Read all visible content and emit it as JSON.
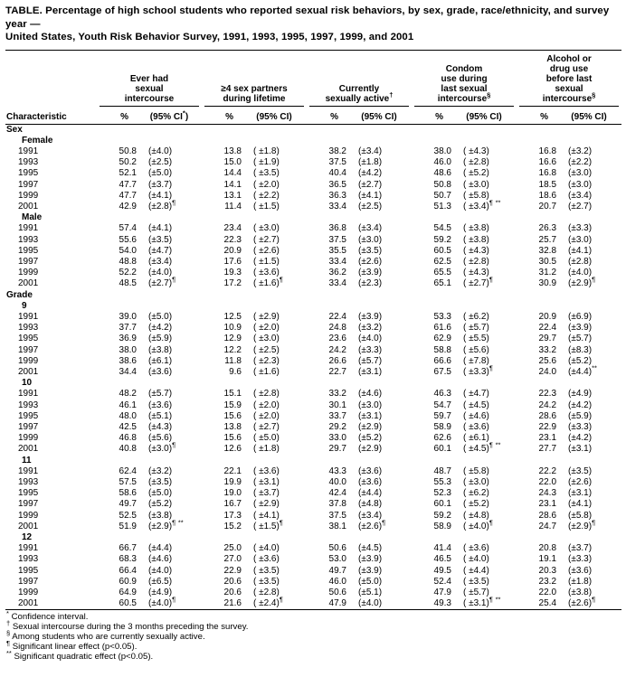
{
  "title": {
    "line1": "TABLE.  Percentage of high school students who reported sexual risk behaviors, by sex, grade, race/ethnicity, and survey year —",
    "line2": "United States, Youth Risk Behavior Survey, 1991, 1993, 1995, 1997, 1999,  and 2001"
  },
  "table": {
    "characteristic_label": "Characteristic",
    "groups": [
      {
        "lines": [
          "Ever had",
          "sexual",
          "intercourse"
        ],
        "sup": "",
        "pct_label": "%",
        "ci_label": "(95% CI*)"
      },
      {
        "lines": [
          "≥4 sex partners",
          "during lifetime"
        ],
        "sup": "",
        "pct_label": "%",
        "ci_label": "(95% CI)"
      },
      {
        "lines": [
          "Currently",
          "sexually active"
        ],
        "sup": "†",
        "pct_label": "%",
        "ci_label": "(95% CI)"
      },
      {
        "lines": [
          "Condom",
          "use during",
          "last sexual",
          "intercourse"
        ],
        "sup": "§",
        "pct_label": "%",
        "ci_label": "(95% CI)"
      },
      {
        "lines": [
          "Alcohol or",
          "drug use",
          "before last",
          "sexual",
          "intercourse"
        ],
        "sup": "§",
        "pct_label": "%",
        "ci_label": "(95% CI)"
      }
    ],
    "sections": [
      {
        "label": "Sex",
        "subsections": [
          {
            "label": "Female",
            "rows": [
              {
                "year": "1991",
                "cells": [
                  "50.8",
                  "(±4.0)",
                  "13.8",
                  "( ±1.8)",
                  "38.2",
                  "(±3.4)",
                  "38.0",
                  "( ±4.3)",
                  "16.8",
                  "(±3.2)"
                ]
              },
              {
                "year": "1993",
                "cells": [
                  "50.2",
                  "(±2.5)",
                  "15.0",
                  "( ±1.9)",
                  "37.5",
                  "(±1.8)",
                  "46.0",
                  "( ±2.8)",
                  "16.6",
                  "(±2.2)"
                ]
              },
              {
                "year": "1995",
                "cells": [
                  "52.1",
                  "(±5.0)",
                  "14.4",
                  "( ±3.5)",
                  "40.4",
                  "(±4.2)",
                  "48.6",
                  "( ±5.2)",
                  "16.8",
                  "(±3.0)"
                ]
              },
              {
                "year": "1997",
                "cells": [
                  "47.7",
                  "(±3.7)",
                  "14.1",
                  "( ±2.0)",
                  "36.5",
                  "(±2.7)",
                  "50.8",
                  "( ±3.0)",
                  "18.5",
                  "(±3.0)"
                ]
              },
              {
                "year": "1999",
                "cells": [
                  "47.7",
                  "(±4.1)",
                  "13.1",
                  "( ±2.2)",
                  "36.3",
                  "(±4.1)",
                  "50.7",
                  "( ±5.8)",
                  "18.6",
                  "(±3.4)"
                ]
              },
              {
                "year": "2001",
                "cells": [
                  "42.9",
                  "(±2.8)¶",
                  "11.4",
                  "( ±1.5)",
                  "33.4",
                  "(±2.5)",
                  "51.3",
                  "( ±3.4)¶ **",
                  "20.7",
                  "(±2.7)"
                ]
              }
            ]
          },
          {
            "label": "Male",
            "rows": [
              {
                "year": "1991",
                "cells": [
                  "57.4",
                  "(±4.1)",
                  "23.4",
                  "( ±3.0)",
                  "36.8",
                  "(±3.4)",
                  "54.5",
                  "( ±3.8)",
                  "26.3",
                  "(±3.3)"
                ]
              },
              {
                "year": "1993",
                "cells": [
                  "55.6",
                  "(±3.5)",
                  "22.3",
                  "( ±2.7)",
                  "37.5",
                  "(±3.0)",
                  "59.2",
                  "( ±3.8)",
                  "25.7",
                  "(±3.0)"
                ]
              },
              {
                "year": "1995",
                "cells": [
                  "54.0",
                  "(±4.7)",
                  "20.9",
                  "( ±2.6)",
                  "35.5",
                  "(±3.5)",
                  "60.5",
                  "( ±4.3)",
                  "32.8",
                  "(±4.1)"
                ]
              },
              {
                "year": "1997",
                "cells": [
                  "48.8",
                  "(±3.4)",
                  "17.6",
                  "( ±1.5)",
                  "33.4",
                  "(±2.6)",
                  "62.5",
                  "( ±2.8)",
                  "30.5",
                  "(±2.8)"
                ]
              },
              {
                "year": "1999",
                "cells": [
                  "52.2",
                  "(±4.0)",
                  "19.3",
                  "( ±3.6)",
                  "36.2",
                  "(±3.9)",
                  "65.5",
                  "( ±4.3)",
                  "31.2",
                  "(±4.0)"
                ]
              },
              {
                "year": "2001",
                "cells": [
                  "48.5",
                  "(±2.7)¶",
                  "17.2",
                  "( ±1.6)¶",
                  "33.4",
                  "(±2.3)",
                  "65.1",
                  "( ±2.7)¶",
                  "30.9",
                  "(±2.9)¶"
                ]
              }
            ]
          }
        ]
      },
      {
        "label": "Grade",
        "subsections": [
          {
            "label": "9",
            "rows": [
              {
                "year": "1991",
                "cells": [
                  "39.0",
                  "(±5.0)",
                  "12.5",
                  "( ±2.9)",
                  "22.4",
                  "(±3.9)",
                  "53.3",
                  "( ±6.2)",
                  "20.9",
                  "(±6.9)"
                ]
              },
              {
                "year": "1993",
                "cells": [
                  "37.7",
                  "(±4.2)",
                  "10.9",
                  "( ±2.0)",
                  "24.8",
                  "(±3.2)",
                  "61.6",
                  "( ±5.7)",
                  "22.4",
                  "(±3.9)"
                ]
              },
              {
                "year": "1995",
                "cells": [
                  "36.9",
                  "(±5.9)",
                  "12.9",
                  "( ±3.0)",
                  "23.6",
                  "(±4.0)",
                  "62.9",
                  "( ±5.5)",
                  "29.7",
                  "(±5.7)"
                ]
              },
              {
                "year": "1997",
                "cells": [
                  "38.0",
                  "(±3.8)",
                  "12.2",
                  "( ±2.5)",
                  "24.2",
                  "(±3.3)",
                  "58.8",
                  "( ±5.6)",
                  "33.2",
                  "(±8.3)"
                ]
              },
              {
                "year": "1999",
                "cells": [
                  "38.6",
                  "(±6.1)",
                  "11.8",
                  "( ±2.3)",
                  "26.6",
                  "(±5.7)",
                  "66.6",
                  "( ±7.8)",
                  "25.6",
                  "(±5.2)"
                ]
              },
              {
                "year": "2001",
                "cells": [
                  "34.4",
                  "(±3.6)",
                  "9.6",
                  "( ±1.6)",
                  "22.7",
                  "(±3.1)",
                  "67.5",
                  "( ±3.3)¶",
                  "24.0",
                  "(±4.4)**"
                ]
              }
            ]
          },
          {
            "label": "10",
            "rows": [
              {
                "year": "1991",
                "cells": [
                  "48.2",
                  "(±5.7)",
                  "15.1",
                  "( ±2.8)",
                  "33.2",
                  "(±4.6)",
                  "46.3",
                  "( ±4.7)",
                  "22.3",
                  "(±4.9)"
                ]
              },
              {
                "year": "1993",
                "cells": [
                  "46.1",
                  "(±3.6)",
                  "15.9",
                  "( ±2.0)",
                  "30.1",
                  "(±3.0)",
                  "54.7",
                  "( ±4.5)",
                  "24.2",
                  "(±4.2)"
                ]
              },
              {
                "year": "1995",
                "cells": [
                  "48.0",
                  "(±5.1)",
                  "15.6",
                  "( ±2.0)",
                  "33.7",
                  "(±3.1)",
                  "59.7",
                  "( ±4.6)",
                  "28.6",
                  "(±5.9)"
                ]
              },
              {
                "year": "1997",
                "cells": [
                  "42.5",
                  "(±4.3)",
                  "13.8",
                  "( ±2.7)",
                  "29.2",
                  "(±2.9)",
                  "58.9",
                  "( ±3.6)",
                  "22.9",
                  "(±3.3)"
                ]
              },
              {
                "year": "1999",
                "cells": [
                  "46.8",
                  "(±5.6)",
                  "15.6",
                  "( ±5.0)",
                  "33.0",
                  "(±5.2)",
                  "62.6",
                  "( ±6.1)",
                  "23.1",
                  "(±4.2)"
                ]
              },
              {
                "year": "2001",
                "cells": [
                  "40.8",
                  "(±3.0)¶",
                  "12.6",
                  "( ±1.8)",
                  "29.7",
                  "(±2.9)",
                  "60.1",
                  "( ±4.5)¶ **",
                  "27.7",
                  "(±3.1)"
                ]
              }
            ]
          },
          {
            "label": "11",
            "rows": [
              {
                "year": "1991",
                "cells": [
                  "62.4",
                  "(±3.2)",
                  "22.1",
                  "( ±3.6)",
                  "43.3",
                  "(±3.6)",
                  "48.7",
                  "( ±5.8)",
                  "22.2",
                  "(±3.5)"
                ]
              },
              {
                "year": "1993",
                "cells": [
                  "57.5",
                  "(±3.5)",
                  "19.9",
                  "( ±3.1)",
                  "40.0",
                  "(±3.6)",
                  "55.3",
                  "( ±3.0)",
                  "22.0",
                  "(±2.6)"
                ]
              },
              {
                "year": "1995",
                "cells": [
                  "58.6",
                  "(±5.0)",
                  "19.0",
                  "( ±3.7)",
                  "42.4",
                  "(±4.4)",
                  "52.3",
                  "( ±6.2)",
                  "24.3",
                  "(±3.1)"
                ]
              },
              {
                "year": "1997",
                "cells": [
                  "49.7",
                  "(±5.2)",
                  "16.7",
                  "( ±2.9)",
                  "37.8",
                  "(±4.8)",
                  "60.1",
                  "( ±5.2)",
                  "23.1",
                  "(±4.1)"
                ]
              },
              {
                "year": "1999",
                "cells": [
                  "52.5",
                  "(±3.8)",
                  "17.3",
                  "( ±4.1)",
                  "37.5",
                  "(±3.4)",
                  "59.2",
                  "( ±4.8)",
                  "28.6",
                  "(±5.8)"
                ]
              },
              {
                "year": "2001",
                "cells": [
                  "51.9",
                  "(±2.9)¶ **",
                  "15.2",
                  "( ±1.5)¶",
                  "38.1",
                  "(±2.6)¶",
                  "58.9",
                  "( ±4.0)¶",
                  "24.7",
                  "(±2.9)¶"
                ]
              }
            ]
          },
          {
            "label": "12",
            "rows": [
              {
                "year": "1991",
                "cells": [
                  "66.7",
                  "(±4.4)",
                  "25.0",
                  "( ±4.0)",
                  "50.6",
                  "(±4.5)",
                  "41.4",
                  "( ±3.6)",
                  "20.8",
                  "(±3.7)"
                ]
              },
              {
                "year": "1993",
                "cells": [
                  "68.3",
                  "(±4.6)",
                  "27.0",
                  "( ±3.6)",
                  "53.0",
                  "(±3.9)",
                  "46.5",
                  "( ±4.0)",
                  "19.1",
                  "(±3.3)"
                ]
              },
              {
                "year": "1995",
                "cells": [
                  "66.4",
                  "(±4.0)",
                  "22.9",
                  "( ±3.5)",
                  "49.7",
                  "(±3.9)",
                  "49.5",
                  "( ±4.4)",
                  "20.3",
                  "(±3.6)"
                ]
              },
              {
                "year": "1997",
                "cells": [
                  "60.9",
                  "(±6.5)",
                  "20.6",
                  "( ±3.5)",
                  "46.0",
                  "(±5.0)",
                  "52.4",
                  "( ±3.5)",
                  "23.2",
                  "(±1.8)"
                ]
              },
              {
                "year": "1999",
                "cells": [
                  "64.9",
                  "(±4.9)",
                  "20.6",
                  "( ±2.8)",
                  "50.6",
                  "(±5.1)",
                  "47.9",
                  "( ±5.7)",
                  "22.0",
                  "(±3.8)"
                ]
              },
              {
                "year": "2001",
                "cells": [
                  "60.5",
                  "(±4.0)¶",
                  "21.6",
                  "( ±2.4)¶",
                  "47.9",
                  "(±4.0)",
                  "49.3",
                  "( ±3.1)¶ **",
                  "25.4",
                  "(±2.6)¶"
                ]
              }
            ]
          }
        ]
      }
    ]
  },
  "footnotes": [
    {
      "marker": "*",
      "text": "Confidence interval."
    },
    {
      "marker": "†",
      "text": "Sexual intercourse during the 3 months preceding the survey."
    },
    {
      "marker": "§",
      "text": "Among students who are currently sexually active."
    },
    {
      "marker": "¶",
      "text": "Significant linear effect (p<0.05)."
    },
    {
      "marker": "**",
      "text": "Significant quadratic effect (p<0.05)."
    }
  ]
}
